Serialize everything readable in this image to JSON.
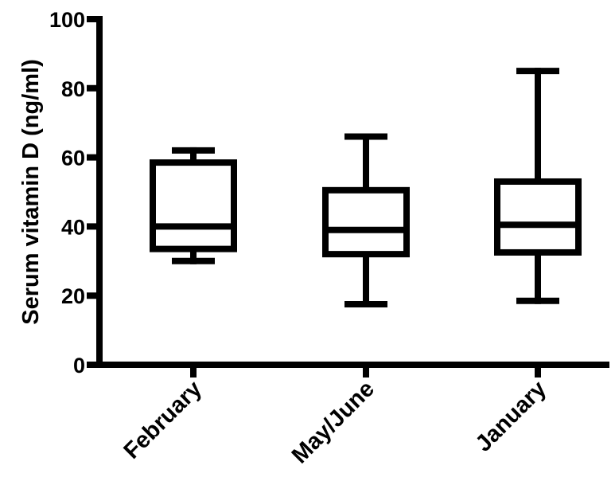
{
  "chart_data": {
    "type": "box",
    "ylabel": "Serum vitamin  D (ng/ml)",
    "ylim": [
      0,
      100
    ],
    "yticks": [
      "0",
      "20",
      "40",
      "60",
      "80",
      "100"
    ],
    "categories": [
      "February",
      "May/June",
      "January"
    ],
    "series": [
      {
        "boxes": [
          {
            "min": 30,
            "q1": 33.5,
            "median": 40,
            "q3": 58.5,
            "max": 62
          },
          {
            "min": 17.5,
            "q1": 32,
            "median": 39,
            "q3": 50.5,
            "max": 66
          },
          {
            "min": 18.5,
            "q1": 32.5,
            "median": 40.5,
            "q3": 53,
            "max": 85
          }
        ]
      }
    ],
    "grid": false,
    "colors": {
      "line": "#000000",
      "fill": "#ffffff"
    }
  }
}
